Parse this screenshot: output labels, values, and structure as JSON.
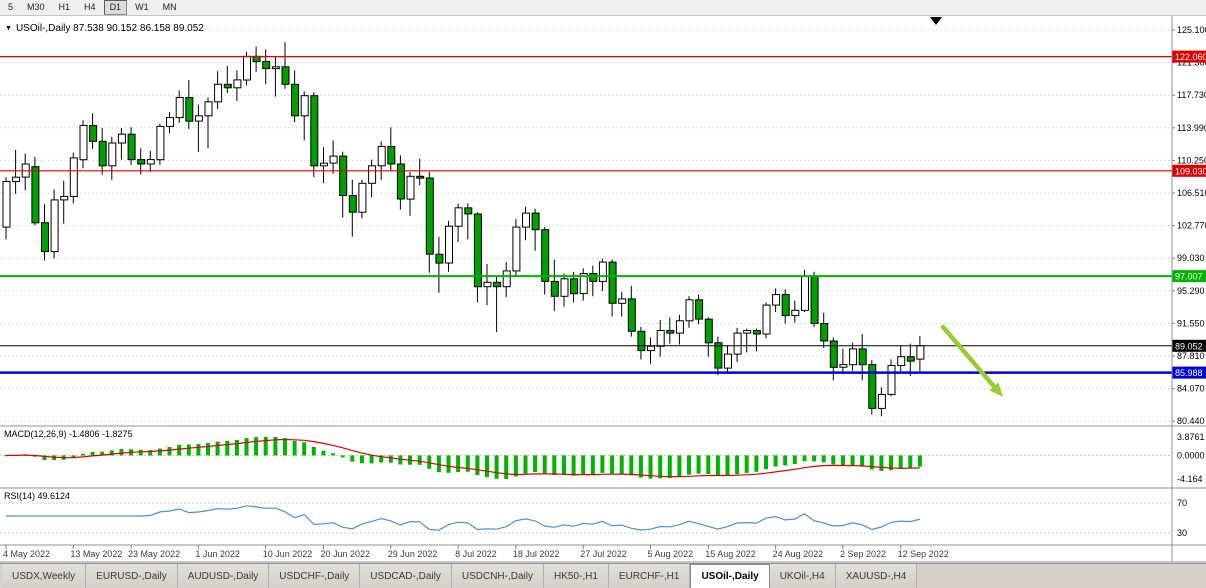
{
  "toolbar": {
    "timeframes": [
      "5",
      "M30",
      "H1",
      "H4",
      "D1",
      "W1",
      "MN"
    ],
    "active": "D1"
  },
  "chart": {
    "title": "USOil-,Daily 87.538 90.152 86.158 89.052",
    "price_axis": [
      "125.100",
      "121.360",
      "117.730",
      "113.990",
      "110.250",
      "106.510",
      "102.770",
      "99.030",
      "95.290",
      "91.550",
      "87.810",
      "84.070",
      "80.440"
    ],
    "levels": [
      {
        "value": 122.06,
        "label": "122.060",
        "color": "#e00000",
        "width": 1.2
      },
      {
        "value": 109.03,
        "label": "109.030",
        "color": "#e00000",
        "width": 1.2
      },
      {
        "value": 97.007,
        "label": "97.007",
        "color": "#00b400",
        "width": 2
      },
      {
        "value": 89.052,
        "label": "89.052",
        "color": "#000000",
        "width": 1
      },
      {
        "value": 85.988,
        "label": "85.988",
        "color": "#0000e0",
        "width": 2.5
      }
    ]
  },
  "macd": {
    "label": "MACD(12,26,9) -1.4806 -1.8275",
    "axis_labels": [
      "3.8761",
      "0.0000",
      "-4.164"
    ],
    "histogram_color": "#00b400",
    "signal_color": "#e00000"
  },
  "rsi": {
    "label": "RSI(14) 49.6124",
    "levels": [
      "70",
      "30"
    ],
    "line_color": "#4a90d2"
  },
  "tabs": {
    "items": [
      "USDX,Weekly",
      "EURUSD-,Daily",
      "AUDUSD-,Daily",
      "USDCHF-,Daily",
      "USDCAD-,Daily",
      "USDCNH-,Daily",
      "HK50-,H1",
      "EURCHF-,H1",
      "USOil-,Daily",
      "UKOil-,H4",
      "XAUUSD-,H4"
    ],
    "active_index": 8
  },
  "chart_data": {
    "type": "candlestick",
    "symbol": "USOil-",
    "timeframe": "Daily",
    "title": "USOil-,Daily",
    "y_axis_range": [
      80.44,
      125.1
    ],
    "grid": true,
    "colors": {
      "bull": "#ffffff",
      "bear": "#00a000",
      "wick": "#000000"
    },
    "ohlc_format": [
      "open",
      "high",
      "low",
      "close"
    ],
    "ohlc": [
      [
        102.6,
        108.3,
        101.2,
        107.8
      ],
      [
        107.8,
        111.4,
        106.4,
        108.3
      ],
      [
        108.3,
        111.0,
        106.8,
        109.8
      ],
      [
        109.5,
        110.6,
        102.8,
        103.1
      ],
      [
        103.1,
        105.2,
        98.8,
        99.8
      ],
      [
        99.8,
        106.9,
        99.0,
        105.7
      ],
      [
        105.7,
        107.9,
        103.0,
        106.1
      ],
      [
        106.1,
        111.1,
        105.3,
        110.5
      ],
      [
        110.3,
        114.8,
        109.3,
        114.2
      ],
      [
        114.2,
        115.6,
        111.5,
        112.4
      ],
      [
        112.4,
        113.9,
        108.6,
        109.6
      ],
      [
        109.6,
        112.9,
        108.0,
        112.2
      ],
      [
        112.2,
        113.9,
        110.3,
        113.2
      ],
      [
        113.2,
        114.0,
        109.7,
        110.3
      ],
      [
        110.3,
        111.6,
        108.6,
        109.8
      ],
      [
        109.8,
        111.3,
        108.9,
        110.3
      ],
      [
        110.3,
        114.4,
        109.7,
        114.1
      ],
      [
        114.1,
        115.7,
        113.3,
        115.1
      ],
      [
        115.1,
        118.2,
        114.5,
        117.4
      ],
      [
        117.4,
        119.4,
        113.8,
        114.7
      ],
      [
        114.7,
        116.6,
        111.2,
        115.3
      ],
      [
        115.3,
        117.4,
        111.6,
        116.9
      ],
      [
        116.9,
        120.4,
        116.1,
        118.9
      ],
      [
        118.9,
        121.0,
        117.9,
        118.5
      ],
      [
        118.5,
        120.5,
        117.0,
        119.4
      ],
      [
        119.4,
        122.6,
        118.8,
        122.1
      ],
      [
        122.1,
        123.2,
        120.3,
        121.5
      ],
      [
        121.5,
        122.9,
        118.9,
        120.7
      ],
      [
        120.7,
        122.0,
        117.5,
        120.9
      ],
      [
        120.9,
        123.7,
        118.4,
        118.9
      ],
      [
        118.9,
        120.5,
        114.6,
        115.3
      ],
      [
        115.3,
        118.1,
        112.5,
        117.6
      ],
      [
        117.6,
        118.0,
        108.3,
        109.6
      ],
      [
        109.6,
        111.7,
        107.6,
        109.9
      ],
      [
        109.9,
        112.5,
        108.7,
        110.7
      ],
      [
        110.7,
        111.2,
        103.7,
        106.2
      ],
      [
        106.2,
        108.0,
        101.5,
        104.3
      ],
      [
        104.3,
        108.0,
        103.6,
        107.6
      ],
      [
        107.6,
        110.3,
        106.0,
        109.6
      ],
      [
        109.6,
        112.4,
        108.0,
        111.8
      ],
      [
        111.8,
        114.0,
        109.1,
        109.8
      ],
      [
        109.8,
        110.8,
        104.6,
        105.8
      ],
      [
        105.8,
        108.9,
        103.9,
        108.4
      ],
      [
        108.4,
        110.4,
        107.4,
        108.2
      ],
      [
        108.2,
        108.9,
        97.4,
        99.5
      ],
      [
        99.5,
        101.5,
        95.1,
        98.5
      ],
      [
        98.5,
        103.3,
        97.5,
        102.7
      ],
      [
        102.7,
        105.3,
        100.9,
        104.8
      ],
      [
        104.8,
        105.3,
        101.2,
        104.1
      ],
      [
        104.1,
        104.3,
        94.0,
        95.8
      ],
      [
        95.8,
        98.4,
        93.7,
        96.3
      ],
      [
        96.3,
        97.0,
        90.6,
        95.8
      ],
      [
        95.8,
        98.6,
        94.6,
        97.6
      ],
      [
        97.6,
        103.5,
        97.1,
        102.6
      ],
      [
        102.6,
        104.9,
        101.1,
        104.2
      ],
      [
        104.2,
        104.7,
        99.9,
        102.3
      ],
      [
        102.3,
        102.6,
        94.9,
        96.4
      ],
      [
        96.4,
        98.9,
        93.0,
        94.7
      ],
      [
        94.7,
        97.3,
        93.5,
        96.7
      ],
      [
        96.7,
        97.5,
        94.0,
        95.0
      ],
      [
        95.0,
        97.9,
        94.2,
        97.3
      ],
      [
        97.3,
        98.2,
        94.7,
        96.4
      ],
      [
        96.4,
        99.0,
        95.3,
        98.6
      ],
      [
        98.6,
        98.9,
        92.4,
        93.9
      ],
      [
        93.9,
        95.2,
        92.4,
        94.4
      ],
      [
        94.4,
        95.9,
        90.1,
        90.7
      ],
      [
        90.7,
        91.2,
        87.5,
        88.5
      ],
      [
        88.5,
        90.0,
        87.0,
        89.0
      ],
      [
        89.0,
        92.0,
        87.8,
        90.8
      ],
      [
        90.8,
        92.3,
        89.3,
        90.5
      ],
      [
        90.5,
        92.6,
        89.2,
        91.9
      ],
      [
        91.9,
        94.7,
        91.1,
        94.3
      ],
      [
        94.3,
        94.9,
        91.5,
        92.1
      ],
      [
        92.1,
        92.3,
        87.8,
        89.4
      ],
      [
        89.4,
        90.1,
        85.7,
        86.5
      ],
      [
        86.5,
        89.1,
        85.9,
        88.1
      ],
      [
        88.1,
        91.1,
        87.2,
        90.5
      ],
      [
        90.5,
        91.0,
        88.3,
        90.8
      ],
      [
        90.8,
        91.0,
        88.4,
        90.4
      ],
      [
        90.4,
        94.0,
        89.9,
        93.7
      ],
      [
        93.7,
        95.6,
        92.9,
        94.9
      ],
      [
        94.9,
        95.5,
        91.6,
        92.5
      ],
      [
        92.5,
        94.2,
        91.7,
        93.1
      ],
      [
        93.1,
        97.7,
        92.9,
        97.0
      ],
      [
        97.0,
        97.5,
        91.2,
        91.6
      ],
      [
        91.6,
        92.8,
        88.8,
        89.6
      ],
      [
        89.6,
        90.0,
        85.1,
        86.6
      ],
      [
        86.6,
        88.7,
        85.8,
        86.9
      ],
      [
        86.9,
        89.4,
        86.2,
        88.7
      ],
      [
        88.7,
        90.4,
        85.1,
        86.9
      ],
      [
        86.9,
        87.4,
        81.2,
        81.9
      ],
      [
        81.9,
        84.3,
        81.0,
        83.5
      ],
      [
        83.5,
        87.5,
        83.3,
        86.8
      ],
      [
        86.8,
        89.1,
        85.9,
        87.8
      ],
      [
        87.8,
        89.3,
        85.6,
        87.3
      ],
      [
        87.538,
        90.152,
        86.158,
        89.052
      ]
    ],
    "date_ticks": [
      {
        "i": 0,
        "label": "4 May 2022"
      },
      {
        "i": 7,
        "label": "13 May 2022"
      },
      {
        "i": 13,
        "label": "23 May 2022"
      },
      {
        "i": 20,
        "label": "1 Jun 2022"
      },
      {
        "i": 27,
        "label": "10 Jun 2022"
      },
      {
        "i": 33,
        "label": "20 Jun 2022"
      },
      {
        "i": 40,
        "label": "29 Jun 2022"
      },
      {
        "i": 47,
        "label": "8 Jul 2022"
      },
      {
        "i": 53,
        "label": "18 Jul 2022"
      },
      {
        "i": 60,
        "label": "27 Jul 2022"
      },
      {
        "i": 67,
        "label": "5 Aug 2022"
      },
      {
        "i": 73,
        "label": "15 Aug 2022"
      },
      {
        "i": 80,
        "label": "24 Aug 2022"
      },
      {
        "i": 87,
        "label": "2 Sep 2022"
      },
      {
        "i": 93,
        "label": "12 Sep 2022"
      }
    ],
    "arrow": {
      "color": "#9acd32",
      "from": [
        943,
        327
      ],
      "to": [
        1003,
        397
      ]
    },
    "indicators": [
      {
        "name": "MACD",
        "params": [
          12,
          26,
          9
        ],
        "values": [
          -1.4806,
          -1.8275
        ]
      },
      {
        "name": "RSI",
        "params": [
          14
        ],
        "value": 49.6124
      }
    ]
  }
}
